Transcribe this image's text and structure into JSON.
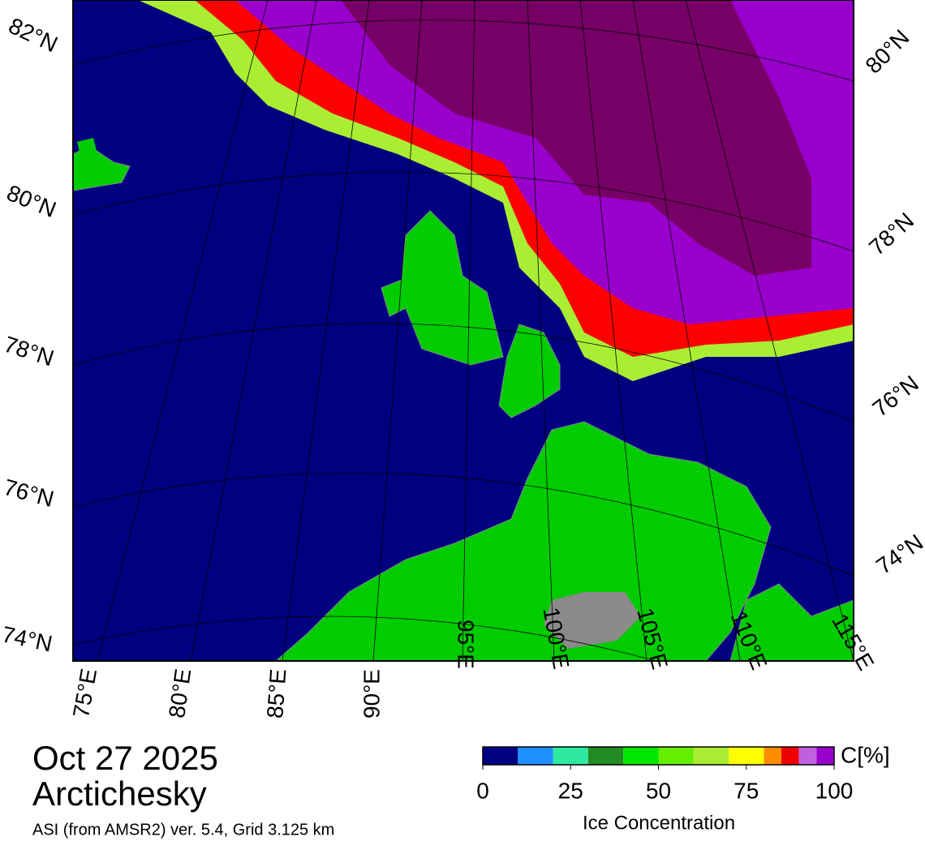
{
  "header": {
    "date": "Oct 27 2025",
    "region": "Arctichesky",
    "source": "ASI (from AMSR2) ver. 5.4,  Grid 3.125 km"
  },
  "map": {
    "lat_labels_left": [
      "82°N",
      "80°N",
      "78°N",
      "76°N",
      "74°N"
    ],
    "lat_labels_right": [
      "80°N",
      "78°N",
      "76°N",
      "74°N"
    ],
    "lon_labels": [
      "75°E",
      "80°E",
      "85°E",
      "90°E",
      "95°E",
      "100°E",
      "105°E",
      "110°E",
      "115°E"
    ]
  },
  "colorbar": {
    "unit": "C[%]",
    "label": "Ice Concentration",
    "ticks": [
      0,
      25,
      50,
      75,
      100
    ],
    "range": [
      0,
      100
    ],
    "levels": [
      0,
      10,
      20,
      30,
      40,
      50,
      60,
      70,
      80,
      85,
      90,
      95,
      100
    ],
    "colors": [
      "#000080",
      "#1e8fff",
      "#2ee8a0",
      "#228b22",
      "#00e600",
      "#66ee00",
      "#aaee33",
      "#ffff00",
      "#ff8c00",
      "#ee0000",
      "#c060e0",
      "#9900cc"
    ]
  }
}
